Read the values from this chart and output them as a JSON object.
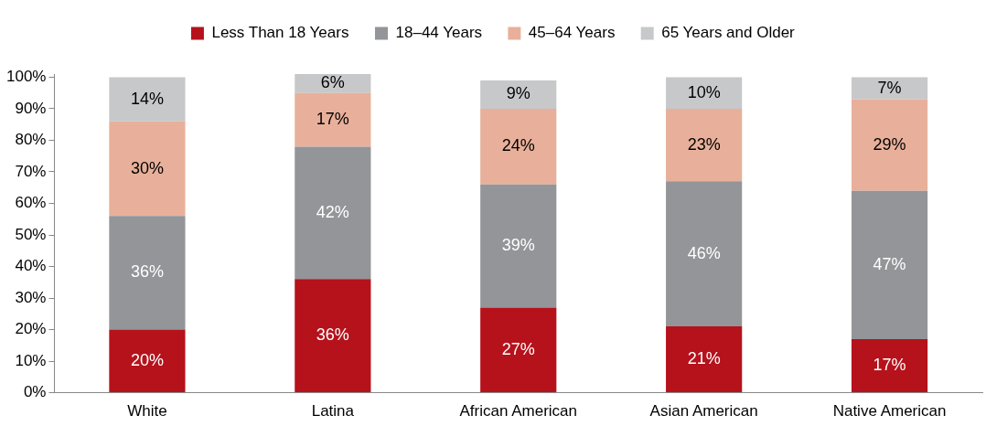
{
  "chart_data": {
    "type": "bar",
    "stacked": true,
    "categories": [
      "White",
      "Latina",
      "African American",
      "Asian American",
      "Native American"
    ],
    "series": [
      {
        "name": "Less Than 18 Years",
        "color": "#b5121b",
        "values": [
          20,
          36,
          27,
          21,
          17
        ]
      },
      {
        "name": "18–44 Years",
        "color": "#939598",
        "values": [
          36,
          42,
          39,
          46,
          47
        ]
      },
      {
        "name": "45–64 Years",
        "color": "#e8b09a",
        "values": [
          30,
          17,
          24,
          23,
          29
        ]
      },
      {
        "name": "65 Years and Older",
        "color": "#c7c8ca",
        "values": [
          14,
          6,
          9,
          10,
          7
        ]
      }
    ],
    "ylim": [
      0,
      101
    ],
    "yticks": [
      {
        "value": 0,
        "label": "0%"
      },
      {
        "value": 10,
        "label": "10%"
      },
      {
        "value": 20,
        "label": "20%"
      },
      {
        "value": 30,
        "label": "30%"
      },
      {
        "value": 40,
        "label": "40%"
      },
      {
        "value": 50,
        "label": "50%"
      },
      {
        "value": 60,
        "label": "60%"
      },
      {
        "value": 70,
        "label": "70%"
      },
      {
        "value": 80,
        "label": "80%"
      },
      {
        "value": 90,
        "label": "90%"
      },
      {
        "value": 100,
        "label": "100%"
      }
    ],
    "value_labels": [
      [
        "20%",
        "36%",
        "27%",
        "21%",
        "17%"
      ],
      [
        "36%",
        "42%",
        "39%",
        "46%",
        "47%"
      ],
      [
        "30%",
        "17%",
        "24%",
        "23%",
        "29%"
      ],
      [
        "14%",
        "6%",
        "9%",
        "10%",
        "7%"
      ]
    ],
    "grid": false,
    "legend": "top"
  }
}
